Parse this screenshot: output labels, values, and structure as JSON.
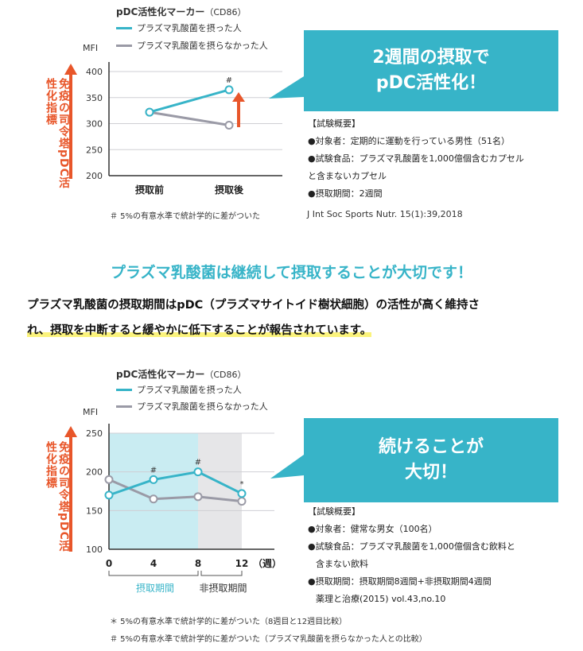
{
  "colors": {
    "accent": "#37b4c8",
    "gray": "#9a9aa6",
    "orange": "#e8562a",
    "highlight": "#fbf37c"
  },
  "chart1": {
    "legend_title": "pDC活性化マーカー",
    "legend_sub": "（CD86）",
    "mfi": "MFI",
    "vertical_label": "免疫の司令塔pDC活性化指標",
    "callout": [
      "2週間の摂取で",
      "pDC活性化！"
    ],
    "info": [
      "【試験概要】",
      "●対象者：定期的に運動を行っている男性（51名）",
      "●試験食品：プラズマ乳酸菌を1,000億個含むカプセル",
      "と含まないカプセル",
      "●摂取期間：2週間"
    ],
    "footnote": "＃ 5%の有意水準で統計学的に差がついた",
    "source": "J Int Soc Sports Nutr. 15(1):39,2018"
  },
  "chart2": {
    "legend_title": "pDC活性化マーカー",
    "legend_sub": "（CD86）",
    "mfi": "MFI",
    "vertical_label": "免疫の司令塔pDC活性化指標",
    "callout": [
      "続けることが",
      "大切！"
    ],
    "period1": "摂取期間",
    "period2": "非摂取期間",
    "info": [
      "【試験概要】",
      "●対象者：健常な男女（100名）",
      "●試験食品：プラズマ乳酸菌を1,000億個含む飲料と",
      "含まない飲料",
      "●摂取期間：摂取期間8週間+非摂取期間4週間",
      "薬理と治療(2015) vol.43,no.10"
    ],
    "note1": "＊ 5%の有意水準で統計学的に差がついた（8週目と12週目比較）",
    "note2": "＃ 5%の有意水準で統計学的に差がついた（プラズマ乳酸菌を摂らなかった人との比較）"
  },
  "middle": {
    "headline": "プラズマ乳酸菌は継続して摂取することが大切です！",
    "body_line1": "プラズマ乳酸菌の摂取期間はpDC（プラズマサイトイド樹状細胞）の活性が高く維持さ",
    "body_line2": "れ、摂取を中断すると緩やかに低下することが報告されています。"
  },
  "chart_data": [
    {
      "type": "line",
      "title": "pDC活性化マーカー（CD86）",
      "ylabel": "MFI",
      "categories": [
        "摂取前",
        "摂取後"
      ],
      "ylim": [
        200,
        400
      ],
      "yticks": [
        200,
        250,
        300,
        350,
        400
      ],
      "series": [
        {
          "name": "プラズマ乳酸菌を摂った人",
          "color": "#37b4c8",
          "values": [
            322,
            365
          ]
        },
        {
          "name": "プラズマ乳酸菌を摂らなかった人",
          "color": "#9a9aa6",
          "values": [
            322,
            297
          ]
        }
      ],
      "annotations": [
        {
          "category": "摂取後",
          "text": "#"
        }
      ]
    },
    {
      "type": "line",
      "title": "pDC活性化マーカー（CD86）",
      "ylabel": "MFI",
      "x": [
        0,
        4,
        8,
        12
      ],
      "xticks": [
        "0",
        "4",
        "8",
        "12"
      ],
      "xunit": "（週）",
      "ylim": [
        100,
        250
      ],
      "yticks": [
        100,
        150,
        200,
        250
      ],
      "series": [
        {
          "name": "プラズマ乳酸菌を摂った人",
          "color": "#37b4c8",
          "values": [
            170,
            190,
            200,
            172
          ]
        },
        {
          "name": "プラズマ乳酸菌を摂らなかった人",
          "color": "#9a9aa6",
          "values": [
            190,
            165,
            168,
            162
          ]
        }
      ],
      "annotations": [
        {
          "x": 4,
          "text": "#"
        },
        {
          "x": 8,
          "text": "#"
        },
        {
          "x": 12,
          "text": "*"
        }
      ],
      "shaded": [
        {
          "from": 0,
          "to": 8,
          "label": "摂取期間"
        },
        {
          "from": 8,
          "to": 12,
          "label": "非摂取期間"
        }
      ]
    }
  ]
}
